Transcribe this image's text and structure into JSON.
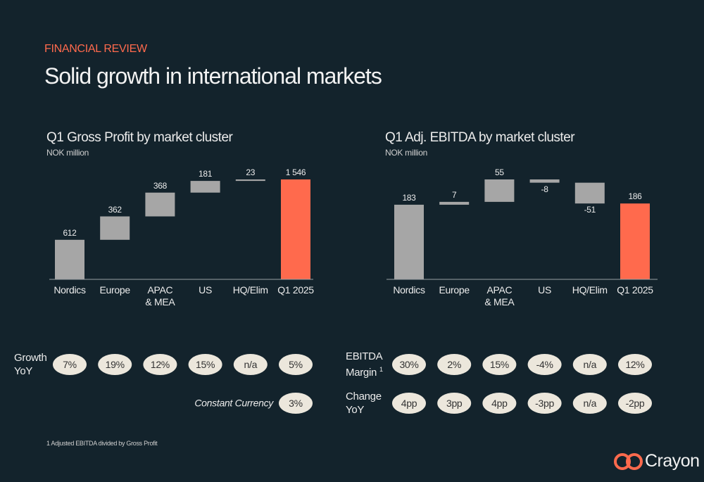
{
  "header": {
    "kicker": "FINANCIAL REVIEW",
    "title": "Solid growth in international markets"
  },
  "chart_data": [
    {
      "type": "waterfall",
      "title": "Q1 Gross Profit by market cluster",
      "subtitle": "NOK million",
      "categories": [
        "Nordics",
        "Europe",
        "APAC & MEA",
        "US",
        "HQ/Elim",
        "Q1 2025"
      ],
      "values": [
        612,
        362,
        368,
        181,
        23,
        1546
      ],
      "value_labels": [
        "612",
        "362",
        "368",
        "181",
        "23",
        "1 546"
      ],
      "color": "#a6a6a6",
      "total_color": "#ff6a4d"
    },
    {
      "type": "waterfall",
      "title": "Q1 Adj. EBITDA by market cluster",
      "subtitle": "NOK million",
      "categories": [
        "Nordics",
        "Europe",
        "APAC & MEA",
        "US",
        "HQ/Elim",
        "Q1 2025"
      ],
      "values": [
        183,
        7,
        55,
        -8,
        -51,
        186
      ],
      "color": "#a6a6a6",
      "total_color": "#ff6a4d"
    }
  ],
  "metrics": [
    {
      "rows": [
        {
          "label": "Growth YoY",
          "values": [
            "7%",
            "19%",
            "12%",
            "15%",
            "n/a",
            "5%"
          ]
        },
        {
          "label": "Constant Currency",
          "italic": true,
          "values": [
            null,
            null,
            null,
            null,
            null,
            "3%"
          ]
        }
      ]
    },
    {
      "rows": [
        {
          "label": "EBITDA Margin",
          "note": "1",
          "values": [
            "30%",
            "2%",
            "15%",
            "-4%",
            "n/a",
            "12%"
          ]
        },
        {
          "label": "Change YoY",
          "values": [
            "4pp",
            "3pp",
            "4pp",
            "-3pp",
            "n/a",
            "-2pp"
          ]
        }
      ]
    }
  ],
  "footnote": "1 Adjusted EBITDA divided by Gross Profit",
  "logo": "Crayon"
}
